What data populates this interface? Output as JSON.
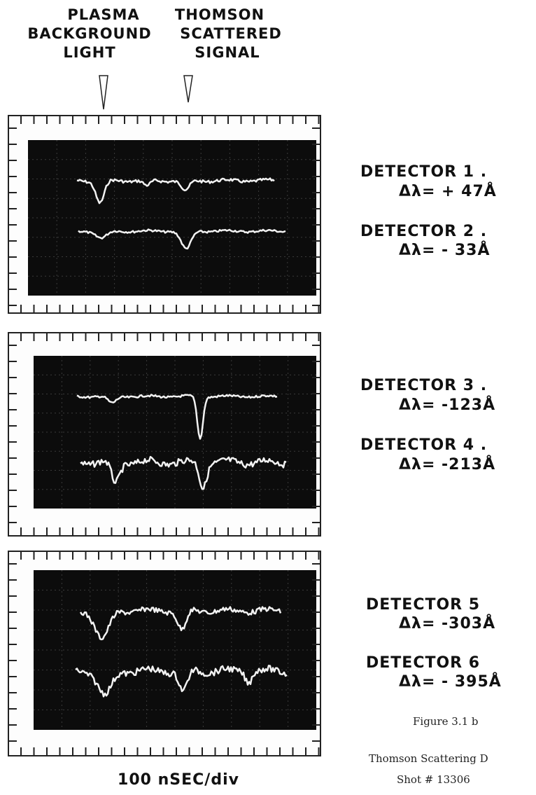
{
  "header": {
    "labels": [
      {
        "lines": [
          "PLASMA",
          "BACKGROUND",
          "LIGHT"
        ]
      },
      {
        "lines": [
          "THOMSON",
          "SCATTERED",
          "SIGNAL"
        ]
      }
    ]
  },
  "panels": [
    {
      "detectors": [
        {
          "name": "DETECTOR 1 .",
          "shift": "Δλ=  + 47Å"
        },
        {
          "name": "DETECTOR 2 .",
          "shift": "Δλ=  - 33Å"
        }
      ]
    },
    {
      "detectors": [
        {
          "name": "DETECTOR 3 .",
          "shift": "Δλ=  -123Å"
        },
        {
          "name": "DETECTOR 4 .",
          "shift": "Δλ=  -213Å"
        }
      ]
    },
    {
      "detectors": [
        {
          "name": "DETECTOR 5",
          "shift": "Δλ=  -303Å"
        },
        {
          "name": "DETECTOR 6",
          "shift": "Δλ=  - 395Å"
        }
      ]
    }
  ],
  "time_scale": "100 nSEC/div",
  "caption": {
    "figure": "Figure 3.1 b",
    "title": "Thomson Scattering D",
    "shot": "Shot # 13306"
  }
}
